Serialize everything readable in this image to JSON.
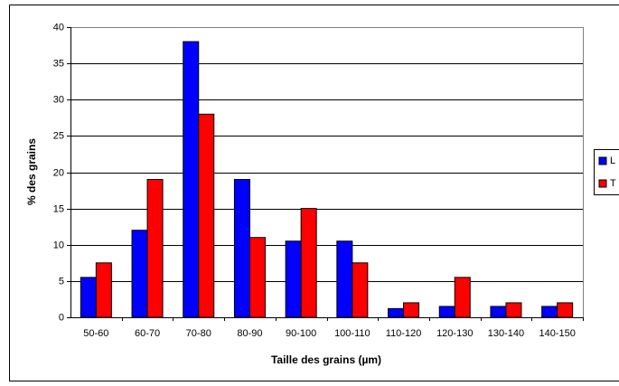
{
  "chart_data": {
    "type": "bar",
    "x_label": "Taille des grains (µm)",
    "y_label": "% des grains",
    "categories": [
      "50-60",
      "60-70",
      "70-80",
      "80-90",
      "90-100",
      "100-110",
      "110-120",
      "120-130",
      "130-140",
      "140-150"
    ],
    "series": [
      {
        "name": "L",
        "color": "#0000ff",
        "values": [
          5.5,
          12,
          38,
          19,
          10.5,
          10.5,
          1.2,
          1.5,
          1.5,
          1.5
        ]
      },
      {
        "name": "T",
        "color": "#ff0000",
        "values": [
          7.5,
          19,
          28,
          11,
          15,
          7.5,
          2,
          5.5,
          2,
          2
        ]
      }
    ],
    "ylim": [
      0,
      40
    ],
    "yticks": [
      0,
      5,
      10,
      15,
      20,
      25,
      30,
      35,
      40
    ],
    "grid": true,
    "legend": "right"
  }
}
